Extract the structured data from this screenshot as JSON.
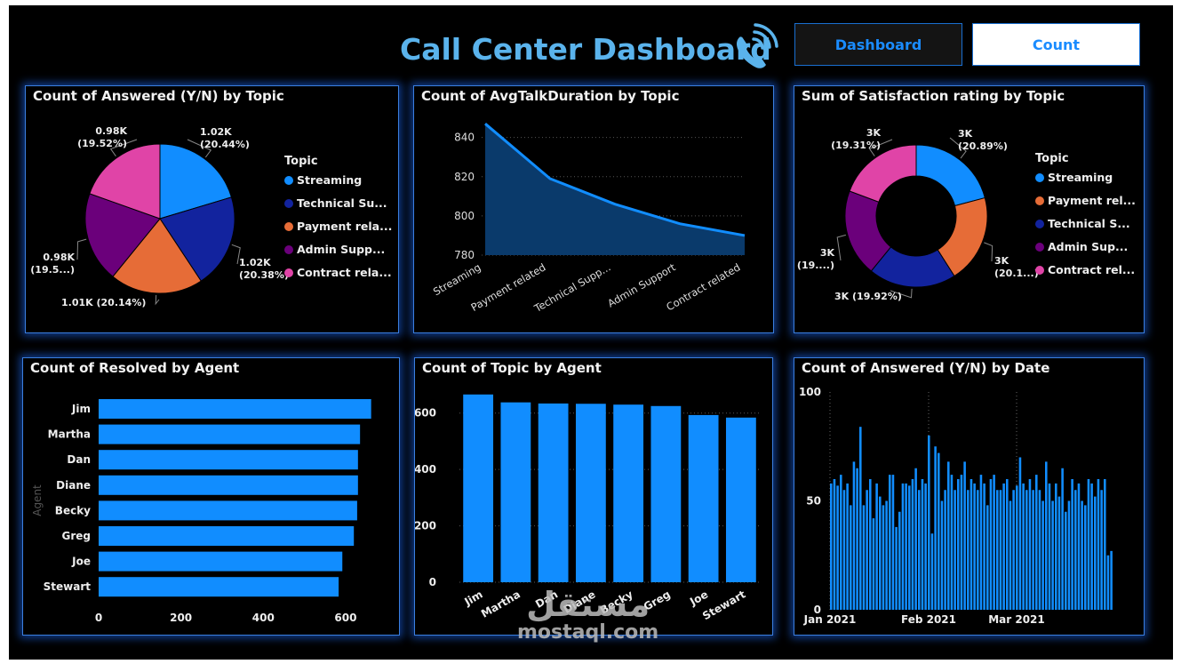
{
  "header": {
    "title": "Call Center Dashboard",
    "nav": {
      "dashboard": "Dashboard",
      "count": "Count"
    }
  },
  "watermark": {
    "arabic": "مستقل",
    "latin": "mostaql.com"
  },
  "colors": {
    "accent": "#1a8cff",
    "streaming": "#118dff",
    "technical": "#12239e",
    "payment": "#e66c37",
    "admin": "#6b007b",
    "contract": "#e044a7",
    "bar": "#118dff"
  },
  "panels": {
    "answered_topic": {
      "title": "Count of Answered (Y/N) by Topic"
    },
    "talk_duration": {
      "title": "Count of AvgTalkDuration by Topic"
    },
    "satisfaction": {
      "title": "Sum of Satisfaction rating by Topic"
    },
    "resolved_agent": {
      "title": "Count of Resolved by Agent"
    },
    "topic_agent": {
      "title": "Count of Topic by Agent"
    },
    "answered_date": {
      "title": "Count of Answered (Y/N) by Date"
    }
  },
  "chart_data": [
    {
      "type": "pie",
      "title": "Count of Answered (Y/N) by Topic",
      "legend_title": "Topic",
      "legend_placement": "right",
      "slices": [
        {
          "name": "Streaming",
          "legend_label": "Streaming",
          "value": 1020,
          "label": "1.02K",
          "pct": "(20.44%)",
          "color": "#118dff"
        },
        {
          "name": "Technical Support",
          "legend_label": "Technical Su...",
          "value": 1020,
          "label": "1.02K",
          "pct": "(20.38%)",
          "color": "#12239e"
        },
        {
          "name": "Payment related",
          "legend_label": "Payment rela...",
          "value": 1010,
          "label": "1.01K (20.14%)",
          "pct": "",
          "color": "#e66c37"
        },
        {
          "name": "Admin Support",
          "legend_label": "Admin Supp...",
          "value": 980,
          "label": "0.98K",
          "pct": "(19.5...)",
          "color": "#6b007b"
        },
        {
          "name": "Contract related",
          "legend_label": "Contract rela...",
          "value": 980,
          "label": "0.98K",
          "pct": "(19.52%)",
          "color": "#e044a7"
        }
      ]
    },
    {
      "type": "area",
      "title": "Count of AvgTalkDuration by Topic",
      "categories": [
        "Streaming",
        "Payment related",
        "Technical Supp...",
        "Admin Support",
        "Contract related"
      ],
      "values": [
        847,
        819,
        806,
        796,
        790
      ],
      "ylim": [
        780,
        848
      ],
      "yticks": [
        780,
        800,
        820,
        840
      ],
      "grid": true
    },
    {
      "type": "pie",
      "subtype": "donut",
      "title": "Sum of Satisfaction rating by Topic",
      "legend_title": "Topic",
      "legend_placement": "right",
      "slices": [
        {
          "name": "Streaming",
          "legend_label": "Streaming",
          "value": 20.89,
          "label": "3K",
          "pct": "(20.89%)",
          "color": "#118dff"
        },
        {
          "name": "Payment related",
          "legend_label": "Payment rel...",
          "value": 20.1,
          "label": "3K",
          "pct": "(20.1...)",
          "color": "#e66c37"
        },
        {
          "name": "Technical Support",
          "legend_label": "Technical S...",
          "value": 19.92,
          "label": "3K (19.92%)",
          "pct": "",
          "color": "#12239e"
        },
        {
          "name": "Admin Support",
          "legend_label": "Admin Sup...",
          "value": 19.78,
          "label": "3K",
          "pct": "(19....)",
          "color": "#6b007b"
        },
        {
          "name": "Contract related",
          "legend_label": "Contract rel...",
          "value": 19.31,
          "label": "3K",
          "pct": "(19.31%)",
          "color": "#e044a7"
        }
      ]
    },
    {
      "type": "bar",
      "orientation": "horizontal",
      "title": "Count of Resolved by Agent",
      "ylabel": "Agent",
      "categories": [
        "Jim",
        "Martha",
        "Dan",
        "Diane",
        "Becky",
        "Greg",
        "Joe",
        "Stewart"
      ],
      "values": [
        662,
        635,
        630,
        630,
        628,
        620,
        592,
        583
      ],
      "xlim": [
        0,
        680
      ],
      "xticks": [
        0,
        200,
        400,
        600
      ]
    },
    {
      "type": "bar",
      "title": "Count of Topic by Agent",
      "categories": [
        "Jim",
        "Martha",
        "Dan",
        "Diane",
        "Becky",
        "Greg",
        "Joe",
        "Stewart"
      ],
      "values": [
        666,
        638,
        634,
        633,
        630,
        625,
        593,
        584
      ],
      "ylim": [
        0,
        700
      ],
      "yticks": [
        0,
        200,
        400,
        600
      ],
      "grid": true
    },
    {
      "type": "bar",
      "title": "Count of Answered (Y/N) by Date",
      "x_start": "2021-01-01",
      "x_end": "2021-03-31",
      "xticks": [
        "Jan 2021",
        "Feb 2021",
        "Mar 2021"
      ],
      "ylim": [
        0,
        100
      ],
      "yticks": [
        0,
        50,
        100
      ],
      "values": [
        58,
        60,
        57,
        62,
        55,
        58,
        48,
        68,
        65,
        84,
        48,
        55,
        60,
        42,
        58,
        52,
        48,
        50,
        62,
        62,
        38,
        45,
        58,
        58,
        57,
        60,
        65,
        55,
        60,
        58,
        80,
        35,
        75,
        72,
        50,
        55,
        68,
        62,
        55,
        60,
        62,
        68,
        55,
        60,
        58,
        55,
        62,
        58,
        48,
        60,
        62,
        55,
        55,
        58,
        60,
        50,
        55,
        57,
        70,
        58,
        55,
        60,
        55,
        62,
        55,
        50,
        68,
        58,
        50,
        58,
        52,
        65,
        45,
        50,
        60,
        55,
        58,
        50,
        48,
        60,
        58,
        52,
        60,
        55,
        60,
        25,
        27
      ]
    }
  ]
}
